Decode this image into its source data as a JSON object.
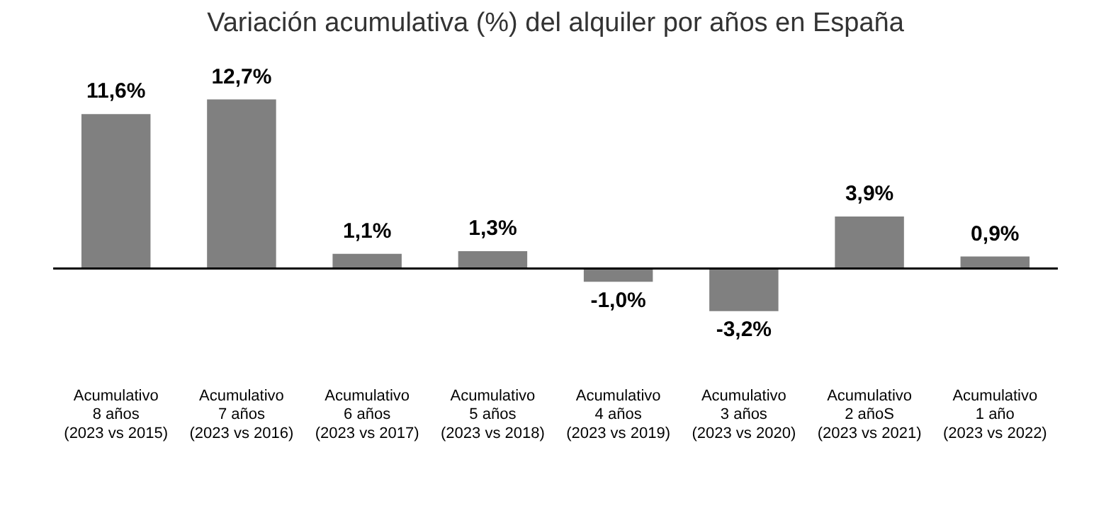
{
  "chart_data": {
    "type": "bar",
    "title": "Variación acumulativa (%) del alquiler por años en España",
    "categories": [
      "Acumulativo\n8 años\n(2023 vs 2015)",
      "Acumulativo\n7 años\n(2023 vs 2016)",
      "Acumulativo\n6 años\n(2023 vs 2017)",
      "Acumulativo\n5 años\n(2023 vs 2018)",
      "Acumulativo\n4 años\n(2023 vs 2019)",
      "Acumulativo\n3 años\n(2023 vs 2020)",
      "Acumulativo\n2 añoS\n(2023 vs 2021)",
      "Acumulativo\n1 año\n(2023 vs 2022)"
    ],
    "values": [
      11.6,
      12.7,
      1.1,
      1.3,
      -1.0,
      -3.2,
      3.9,
      0.9
    ],
    "value_labels": [
      "11,6%",
      "12,7%",
      "1,1%",
      "1,3%",
      "-1,0%",
      "-3,2%",
      "3,9%",
      "0,9%"
    ],
    "color": "#808080",
    "relative": false,
    "grid": false,
    "legend": false
  }
}
